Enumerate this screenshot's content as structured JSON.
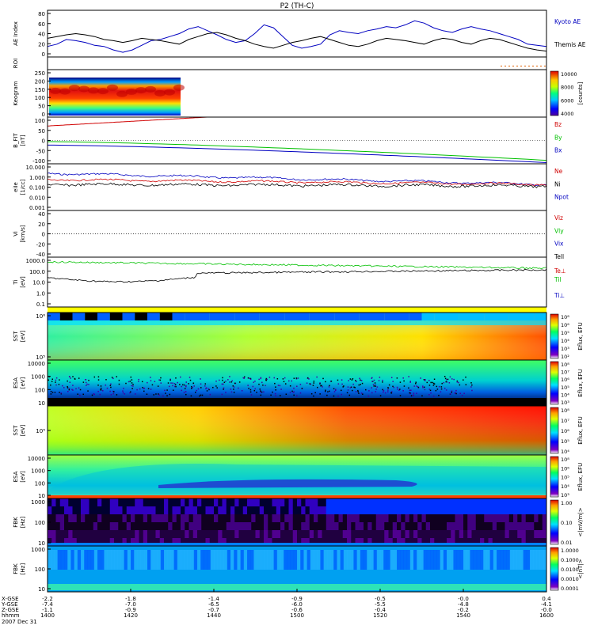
{
  "title": "P2 (TH-C)",
  "colors": {
    "red": "#d00000",
    "green": "#00c000",
    "blue": "#0000c0",
    "black": "#000000"
  },
  "chart_data": [
    {
      "type": "line",
      "panel": "ae",
      "ylabel": "AE Index",
      "ylim": [
        0,
        80
      ],
      "yticks": [
        "0",
        "20",
        "40",
        "60",
        "80"
      ],
      "series": [
        {
          "name": "Kyoto AE",
          "color": "blue",
          "values": [
            18,
            22,
            30,
            28,
            25,
            20,
            18,
            12,
            8,
            12,
            20,
            28,
            30,
            35,
            40,
            48,
            52,
            45,
            38,
            30,
            25,
            28,
            40,
            55,
            50,
            35,
            20,
            15,
            18,
            22,
            38,
            45,
            42,
            40,
            45,
            48,
            52,
            50,
            55,
            62,
            58,
            50,
            45,
            42,
            48,
            52,
            48,
            45,
            40,
            35,
            30,
            22,
            20,
            18
          ]
        },
        {
          "name": "Themis AE",
          "color": "black",
          "values": [
            32,
            35,
            38,
            40,
            38,
            35,
            30,
            28,
            25,
            28,
            32,
            30,
            28,
            25,
            22,
            30,
            35,
            40,
            42,
            38,
            32,
            28,
            22,
            18,
            15,
            20,
            25,
            28,
            32,
            35,
            30,
            25,
            20,
            18,
            22,
            28,
            32,
            30,
            28,
            25,
            22,
            28,
            32,
            30,
            25,
            22,
            28,
            32,
            30,
            25,
            20,
            15,
            12,
            10
          ]
        }
      ]
    },
    {
      "type": "line",
      "panel": "roi",
      "ylabel": "ROI"
    },
    {
      "type": "heatmap",
      "panel": "keogram",
      "ylabel": "Keogram",
      "ylim": [
        0,
        250
      ],
      "yticks": [
        "0",
        "50",
        "100",
        "150",
        "200",
        "250"
      ],
      "colorbar": {
        "ticks": [
          "4000",
          "6000",
          "8000",
          "10000"
        ],
        "label": "[counts]"
      }
    },
    {
      "type": "line",
      "panel": "bfit",
      "ylabel": "B_FIT",
      "units": "[nT]",
      "ylim": [
        -100,
        100
      ],
      "yticks": [
        "-100",
        "-50",
        "0",
        "50",
        "100"
      ],
      "series": [
        {
          "name": "Bz",
          "color": "red",
          "start": 62,
          "end": 100,
          "until": 0.32
        },
        {
          "name": "By",
          "color": "green",
          "start": -5,
          "end": -85
        },
        {
          "name": "Bx",
          "color": "blue",
          "start": -20,
          "end": -95
        }
      ]
    },
    {
      "type": "line",
      "panel": "density",
      "ylabel": "eiIe",
      "units": "[1/cc]",
      "yticks": [
        "0.001",
        "0.010",
        "0.100",
        "1.000",
        "10.000"
      ],
      "series": [
        {
          "name": "Ne",
          "color": "red"
        },
        {
          "name": "Ni",
          "color": "black"
        },
        {
          "name": "Npot",
          "color": "blue"
        }
      ]
    },
    {
      "type": "line",
      "panel": "velocity",
      "ylabel": "Vi",
      "units": "[km/s]",
      "ylim": [
        -50,
        50
      ],
      "yticks": [
        "-40",
        "-20",
        "0",
        "20",
        "40"
      ],
      "series": [
        {
          "name": "Viz",
          "color": "red"
        },
        {
          "name": "Vly",
          "color": "green"
        },
        {
          "name": "Vix",
          "color": "blue"
        }
      ]
    },
    {
      "type": "line",
      "panel": "temperature",
      "ylabel": "Ti",
      "units": "[eV]",
      "yticks": [
        "0.1",
        "1.0",
        "10.0",
        "100.0",
        "1000.0"
      ],
      "series": [
        {
          "name": "Tell",
          "color": "black"
        },
        {
          "name": "Te⊥",
          "color": "red"
        },
        {
          "name": "Til",
          "color": "green"
        },
        {
          "name": "Ti⊥",
          "color": "blue"
        }
      ]
    },
    {
      "type": "heatmap",
      "panel": "sst_e",
      "ylabel": "SST",
      "units": "[eV]",
      "yticks": [
        "10⁵",
        "10⁶"
      ],
      "colorbar": {
        "ticks": [
          "10²",
          "10³",
          "10⁴",
          "10⁵",
          "10⁶",
          "10⁸"
        ],
        "label": "Eflux, EFU"
      }
    },
    {
      "type": "heatmap",
      "panel": "esa_e",
      "ylabel": "ESA",
      "units": "[eV]",
      "yticks": [
        "10",
        "100",
        "1000",
        "10000"
      ],
      "colorbar": {
        "ticks": [
          "10³",
          "10⁴",
          "10⁵",
          "10⁶",
          "10⁷",
          "10⁸"
        ],
        "label": "Eflux, EFU"
      }
    },
    {
      "type": "heatmap",
      "panel": "sst_i",
      "ylabel": "SST",
      "units": "[eV]",
      "yticks": [
        "10⁵"
      ],
      "colorbar": {
        "ticks": [
          "10⁴",
          "10⁵",
          "10⁶",
          "10⁷",
          "10⁸"
        ],
        "label": "Eflux, EFU"
      }
    },
    {
      "type": "heatmap",
      "panel": "esa_i",
      "ylabel": "ESA",
      "units": "[eV]",
      "yticks": [
        "10",
        "100",
        "1000",
        "10000"
      ],
      "colorbar": {
        "ticks": [
          "10³",
          "10⁴",
          "10⁵",
          "10⁶",
          "10⁸"
        ],
        "label": "Eflux, EFU"
      }
    },
    {
      "type": "heatmap",
      "panel": "fbk_e",
      "ylabel": "FBK",
      "units": "[Hz]",
      "yticks": [
        "10",
        "100",
        "1000"
      ],
      "colorbar": {
        "ticks": [
          "0.01",
          "0.10",
          "1.00"
        ],
        "label": "<|mV/m|>"
      }
    },
    {
      "type": "heatmap",
      "panel": "fbk_b",
      "ylabel": "FBK",
      "units": "[Hz]",
      "yticks": [
        "10",
        "100",
        "1000"
      ],
      "colorbar": {
        "ticks": [
          "0.0001",
          "0.0010",
          "0.0100",
          "0.1000",
          "1.0000"
        ],
        "label": "<|nT|>"
      }
    }
  ],
  "xaxis": {
    "row_labels": [
      "X-GSE",
      "Y-GSE",
      "Z-GSE",
      "hhmm",
      "2007 Dec 31"
    ],
    "ticks": [
      {
        "rows": [
          "-2.2",
          "-7.4",
          "-1.1",
          "1400"
        ]
      },
      {
        "rows": [
          "-1.8",
          "-7.0",
          "-0.9",
          "1420"
        ]
      },
      {
        "rows": [
          "-1.4",
          "-6.5",
          "-0.7",
          "1440"
        ]
      },
      {
        "rows": [
          "-0.9",
          "-6.0",
          "-0.6",
          "1500"
        ]
      },
      {
        "rows": [
          "-0.5",
          "-5.5",
          "-0.4",
          "1520"
        ]
      },
      {
        "rows": [
          "-0.0",
          "-4.8",
          "-0.2",
          "1540"
        ]
      },
      {
        "rows": [
          "0.4",
          "-4.1",
          "-0.0",
          "1600"
        ]
      }
    ]
  }
}
